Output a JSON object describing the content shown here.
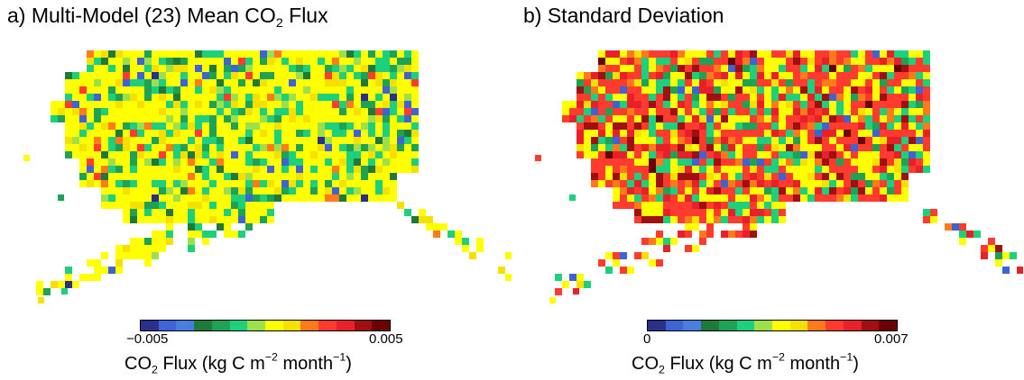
{
  "panels": [
    {
      "title_prefix": "a) Multi-Model (23) Mean CO",
      "title_sub": "2",
      "title_suffix": " Flux",
      "colorbar": {
        "min_label": "−0.005",
        "max_label": "0.005",
        "min": -0.005,
        "max": 0.005
      },
      "legend": {
        "prefix": "CO",
        "sub": "2",
        "mid": " Flux (kg C m",
        "sup1": "−2",
        "mid2": " month",
        "sup2": "−1",
        "suffix": ")"
      }
    },
    {
      "title_prefix": "b) Standard Deviation",
      "title_sub": "",
      "title_suffix": "",
      "colorbar": {
        "min_label": "0",
        "max_label": "0.007",
        "min": 0,
        "max": 0.007
      },
      "legend": {
        "prefix": "CO",
        "sub": "2",
        "mid": " Flux (kg C m",
        "sup1": "−2",
        "mid2": " month",
        "sup2": "−1",
        "suffix": ")"
      }
    }
  ],
  "chart_data": [
    {
      "type": "heatmap",
      "title": "a) Multi-Model (23) Mean CO2 Flux",
      "colorbar_label": "CO2 Flux (kg C m-2 month-1)",
      "colorbar_range": [
        -0.005,
        0.005
      ],
      "colormap": [
        "#2a2f8a",
        "#3d63d4",
        "#4a7de0",
        "#1f7a3a",
        "#1ea356",
        "#1cd07c",
        "#9ee04a",
        "#ffff00",
        "#f5e000",
        "#ff7a1a",
        "#ff3b30",
        "#e8202a",
        "#a01010",
        "#6b0000"
      ],
      "dominant_classes": [
        "yellow",
        "green",
        "bright-green"
      ]
    },
    {
      "type": "heatmap",
      "title": "b) Standard Deviation",
      "colorbar_label": "CO2 Flux (kg C m-2 month-1)",
      "colorbar_range": [
        0,
        0.007
      ],
      "colormap": [
        "#2a2f8a",
        "#3d63d4",
        "#4a7de0",
        "#1f7a3a",
        "#1ea356",
        "#1cd07c",
        "#9ee04a",
        "#ffff00",
        "#f5e000",
        "#ff7a1a",
        "#ff3b30",
        "#e8202a",
        "#a01010",
        "#6b0000"
      ],
      "dominant_classes": [
        "red",
        "yellow",
        "green"
      ]
    }
  ]
}
